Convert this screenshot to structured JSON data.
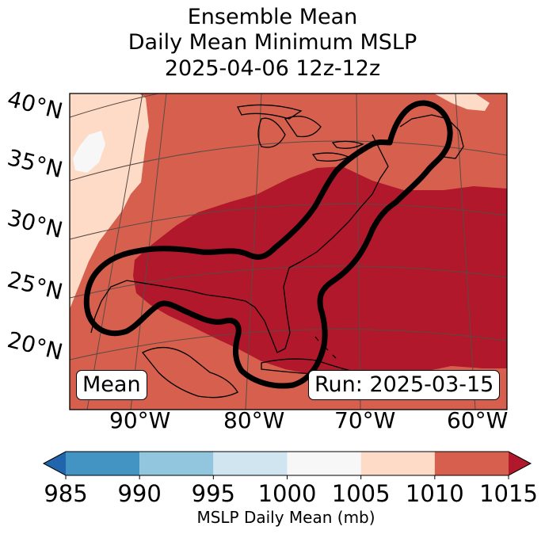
{
  "title": {
    "line1": "Ensemble Mean",
    "line2": "Daily Mean Minimum MSLP",
    "line3": "2025-04-06 12z-12z"
  },
  "map": {
    "extent_description": "Eastern United States, Gulf of Mexico, western Atlantic",
    "lat_labels": [
      "40°N",
      "35°N",
      "30°N",
      "25°N",
      "20°N"
    ],
    "lon_labels": [
      "90°W",
      "80°W",
      "70°W",
      "60°W"
    ],
    "contour_description": "thick black outline enclosing eastern seaboard and Gulf of Mexico region",
    "badge_left": "Mean",
    "badge_right": "Run: 2025-03-15"
  },
  "colorbar": {
    "ticks": [
      "985",
      "990",
      "995",
      "1000",
      "1005",
      "1010",
      "1015"
    ],
    "label": "MSLP Daily Mean (mb)",
    "bins": [
      {
        "from": 985,
        "to": 990,
        "color": "#4393c3"
      },
      {
        "from": 990,
        "to": 995,
        "color": "#92c5de"
      },
      {
        "from": 995,
        "to": 1000,
        "color": "#d1e5f0"
      },
      {
        "from": 1000,
        "to": 1005,
        "color": "#f7f7f7"
      },
      {
        "from": 1005,
        "to": 1010,
        "color": "#fddbc7"
      },
      {
        "from": 1010,
        "to": 1015,
        "color": "#d6604d"
      }
    ],
    "under_color": "#2166ac",
    "over_color": "#b2182b"
  },
  "colors": {
    "high": "#b2182b",
    "mid": "#d6604d",
    "low": "#fddbc7",
    "lowest": "#f7f7f7"
  }
}
